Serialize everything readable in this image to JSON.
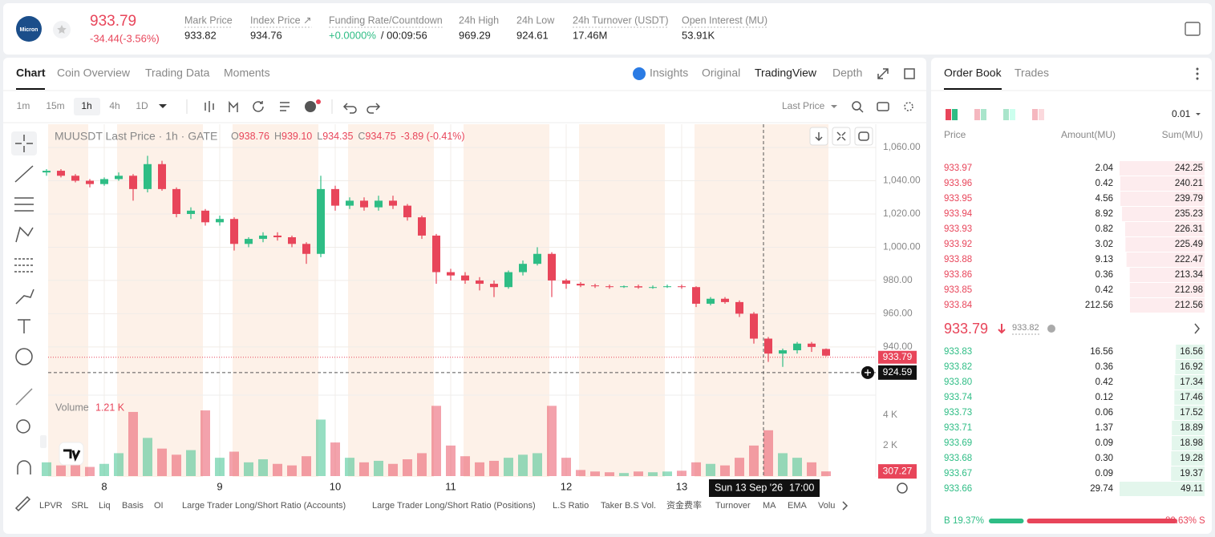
{
  "header": {
    "logo_text": "Micron",
    "price": "933.79",
    "change": "-34.44(-3.56%)",
    "stats": [
      {
        "label": "Mark Price",
        "value": "933.82"
      },
      {
        "label": "Index Price ↗",
        "value": "934.76"
      },
      {
        "label": "Funding Rate/Countdown",
        "value": "+0.0000%",
        "extra": "/ 00:09:56"
      },
      {
        "label": "24h High",
        "value": "969.29"
      },
      {
        "label": "24h Low",
        "value": "924.61"
      },
      {
        "label": "24h Turnover (USDT)",
        "value": "17.46M"
      },
      {
        "label": "Open Interest (MU)",
        "value": "53.91K"
      }
    ]
  },
  "chart_panel": {
    "tabs": [
      "Chart",
      "Coin Overview",
      "Trading Data",
      "Moments"
    ],
    "views": [
      "Insights",
      "Original",
      "TradingView",
      "Depth"
    ],
    "intervals": [
      "1m",
      "15m",
      "1h",
      "4h",
      "1D"
    ],
    "price_type": "Last Price",
    "indicators": [
      "LPVR",
      "SRL",
      "Liq",
      "Basis",
      "OI",
      "Large Trader Long/Short Ratio (Accounts)",
      "Large Trader Long/Short Ratio (Positions)",
      "L.S Ratio",
      "Taker B.S Vol.",
      "资金费率",
      "Turnover",
      "MA",
      "EMA",
      "Volu"
    ]
  },
  "chart_data": {
    "type": "candlestick",
    "title": "MUUSDT Last Price · 1h · GATE",
    "ohlc_legend": [
      {
        "key": "O",
        "value": "938.76"
      },
      {
        "key": "H",
        "value": "939.10"
      },
      {
        "key": "L",
        "value": "934.35"
      },
      {
        "key": "C",
        "value": "934.75"
      }
    ],
    "legend_change": "-3.89 (-0.41%)",
    "categories": [
      null,
      null,
      null,
      null,
      "8",
      null,
      null,
      null,
      null,
      null,
      null,
      null,
      "9",
      null,
      null,
      null,
      null,
      null,
      null,
      null,
      "10",
      null,
      null,
      null,
      null,
      null,
      null,
      null,
      "11",
      null,
      null,
      null,
      null,
      null,
      null,
      null,
      "12",
      null,
      null,
      null,
      null,
      null,
      null,
      null,
      "13",
      null,
      null,
      null,
      null,
      null,
      null,
      null,
      null,
      null,
      null
    ],
    "open": [
      1045,
      1046,
      1043,
      1040,
      1038,
      1041,
      1043,
      1035,
      1050,
      1035,
      1020,
      1022,
      1015,
      1017,
      1002,
      1005,
      1007,
      1006,
      1002,
      996,
      1035,
      1025,
      1028,
      1024,
      1028,
      1025,
      1018,
      1007,
      985,
      983,
      980,
      978,
      976,
      985,
      990,
      996,
      980,
      978,
      977,
      976.5,
      976,
      976.5,
      975.8,
      976,
      976.5,
      976,
      966,
      969,
      967,
      960,
      945,
      936,
      938,
      942,
      938.76
    ],
    "high": [
      1047,
      1047,
      1044,
      1041,
      1042,
      1045,
      1044,
      1055,
      1052,
      1036,
      1024,
      1023,
      1019,
      1018,
      1006,
      1009,
      1009,
      1007,
      1003,
      1043,
      1037,
      1030,
      1030,
      1031,
      1031,
      1026,
      1019,
      1008,
      987,
      985,
      982,
      980,
      986,
      992,
      1000,
      997,
      981,
      979,
      978,
      977.5,
      977,
      977.5,
      977,
      977.5,
      977.5,
      976.5,
      970,
      970,
      968,
      961,
      946,
      939,
      943,
      943,
      939.1
    ],
    "low": [
      1043,
      1042,
      1039,
      1036,
      1037,
      1040,
      1028,
      1033,
      1034,
      1018,
      1017,
      1013,
      1013,
      998,
      1000,
      1003,
      1004,
      1000,
      990,
      994,
      1022,
      1023,
      1022,
      1022,
      1023,
      1016,
      1005,
      978,
      980,
      978,
      974,
      970,
      975,
      983,
      989,
      970,
      975,
      976,
      975.5,
      975,
      975.5,
      975,
      975,
      975.5,
      975,
      964,
      965,
      966,
      958,
      942,
      931,
      928,
      936,
      937,
      934.35
    ],
    "close": [
      1046,
      1043,
      1040,
      1038,
      1041,
      1043,
      1035,
      1050,
      1035,
      1020,
      1022,
      1015,
      1017,
      1002,
      1005,
      1007,
      1006,
      1002,
      996,
      1035,
      1025,
      1028,
      1024,
      1028,
      1025,
      1018,
      1007,
      985,
      983,
      980,
      978,
      976,
      985,
      990,
      996,
      980,
      978,
      977,
      976.5,
      976,
      976.5,
      975.8,
      976,
      976.5,
      976,
      966,
      969,
      967,
      960,
      945,
      936,
      938,
      942,
      940,
      934.75
    ],
    "volume": [
      900,
      700,
      1200,
      600,
      800,
      1500,
      4200,
      2500,
      1800,
      1400,
      1700,
      4300,
      1200,
      1600,
      900,
      1100,
      800,
      700,
      1300,
      3700,
      2200,
      1200,
      900,
      1000,
      800,
      1100,
      1500,
      4600,
      2000,
      1300,
      900,
      1000,
      1200,
      1400,
      1500,
      4600,
      1200,
      400,
      300,
      250,
      200,
      300,
      250,
      300,
      350,
      900,
      800,
      700,
      1200,
      2000,
      3000,
      1500,
      1200,
      900,
      307.27
    ],
    "up_color": "#2ebd85",
    "down_color": "#e8455a",
    "ylim": [
      911,
      1074
    ],
    "yticks": [
      {
        "value": 940,
        "label": "940.00"
      },
      {
        "value": 960,
        "label": "960.00"
      },
      {
        "value": 980,
        "label": "980.00"
      },
      {
        "value": 1000,
        "label": "1,000.00"
      },
      {
        "value": 1020,
        "label": "1,020.00"
      },
      {
        "value": 1040,
        "label": "1,040.00"
      },
      {
        "value": 1060,
        "label": "1,060.00"
      }
    ],
    "volume_lim": [
      0,
      5300
    ],
    "volume_ticks": [
      {
        "value": 2000,
        "label": "2 K"
      },
      {
        "value": 4000,
        "label": "4 K"
      }
    ],
    "volume_title": "Volume",
    "volume_legend": "1.21 K",
    "last_price": 933.79,
    "crosshair_price": 924.59,
    "crosshair_date": "Sun 13 Sep '26",
    "crosshair_time": "17:00",
    "grid": true
  },
  "order_book": {
    "tabs": [
      "Order Book",
      "Trades"
    ],
    "tick_size": "0.01",
    "columns": [
      "Price",
      "Amount(MU)",
      "Sum(MU)"
    ],
    "asks": [
      {
        "price": "933.97",
        "amount": "2.04",
        "sum": 242.25
      },
      {
        "price": "933.96",
        "amount": "0.42",
        "sum": 240.21
      },
      {
        "price": "933.95",
        "amount": "4.56",
        "sum": 239.79
      },
      {
        "price": "933.94",
        "amount": "8.92",
        "sum": 235.23
      },
      {
        "price": "933.93",
        "amount": "0.82",
        "sum": 226.31
      },
      {
        "price": "933.92",
        "amount": "3.02",
        "sum": 225.49
      },
      {
        "price": "933.88",
        "amount": "9.13",
        "sum": 222.47
      },
      {
        "price": "933.86",
        "amount": "0.36",
        "sum": 213.34
      },
      {
        "price": "933.85",
        "amount": "0.42",
        "sum": 212.98
      },
      {
        "price": "933.84",
        "amount": "212.56",
        "sum": 212.56
      }
    ],
    "last_price": "933.79",
    "mark_price": "933.82",
    "bids": [
      {
        "price": "933.83",
        "amount": "16.56",
        "sum": 16.56
      },
      {
        "price": "933.82",
        "amount": "0.36",
        "sum": 16.92
      },
      {
        "price": "933.80",
        "amount": "0.42",
        "sum": 17.34
      },
      {
        "price": "933.74",
        "amount": "0.12",
        "sum": 17.46
      },
      {
        "price": "933.73",
        "amount": "0.06",
        "sum": 17.52
      },
      {
        "price": "933.71",
        "amount": "1.37",
        "sum": 18.89
      },
      {
        "price": "933.69",
        "amount": "0.09",
        "sum": 18.98
      },
      {
        "price": "933.68",
        "amount": "0.30",
        "sum": 19.28
      },
      {
        "price": "933.67",
        "amount": "0.09",
        "sum": 19.37
      },
      {
        "price": "933.66",
        "amount": "29.74",
        "sum": 49.11
      }
    ],
    "buy_label": "B",
    "buy_ratio": {
      "value": 19.37,
      "label": "19.37%"
    },
    "sell_label": "S",
    "sell_ratio": {
      "value": 80.63,
      "label": "80.63%"
    }
  }
}
